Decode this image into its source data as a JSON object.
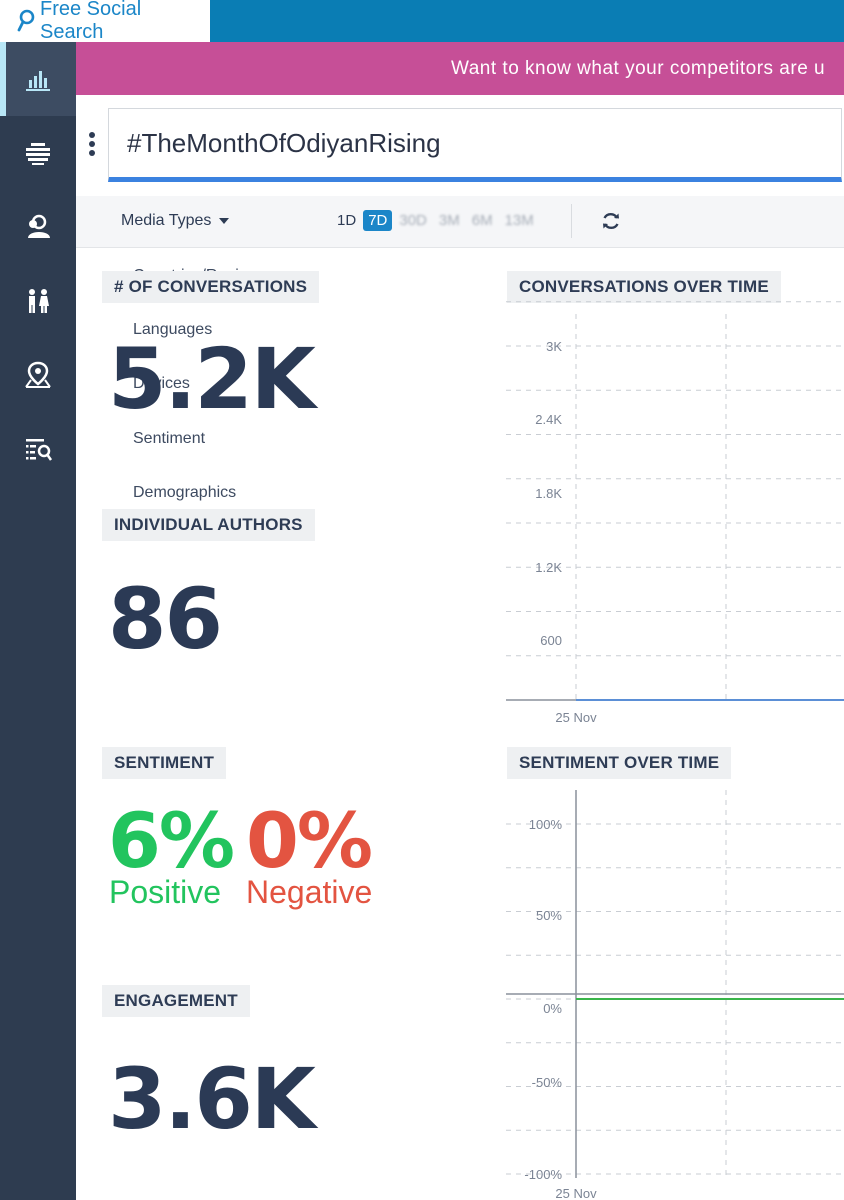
{
  "brand": {
    "name": "Free Social Search"
  },
  "banner": {
    "text": "Want to know what your competitors are u"
  },
  "search": {
    "value": "#TheMonthOfOdiyanRising"
  },
  "filters": {
    "media_types_label": "Media Types",
    "ranges": [
      "1D",
      "7D",
      "30D",
      "3M",
      "6M",
      "13M"
    ],
    "selected_range": "7D"
  },
  "menu": {
    "items": [
      "Countries/Regions",
      "Languages",
      "Devices",
      "Sentiment",
      "Demographics"
    ]
  },
  "stats": {
    "conversations_label": "# OF CONVERSATIONS",
    "conversations_value": "5.2K",
    "authors_label": "INDIVIDUAL AUTHORS",
    "authors_value": "86",
    "sentiment_label": "SENTIMENT",
    "positive_value": "6%",
    "positive_label": "Positive",
    "negative_value": "0%",
    "negative_label": "Negative",
    "engagement_label": "ENGAGEMENT",
    "engagement_value": "3.6K"
  },
  "colors": {
    "brand_blue": "#0a7db4",
    "banner_pink": "#c64f97",
    "sidebar": "#2e3c50",
    "positive": "#22c45e",
    "negative": "#e35441",
    "accent_blue": "#3b82e0"
  },
  "sidebar_icons": [
    "bar-chart-icon",
    "stack-icon",
    "users-icon",
    "gender-icon",
    "map-pin-icon",
    "list-search-icon"
  ],
  "chart_data": [
    {
      "type": "line",
      "title": "CONVERSATIONS OVER TIME",
      "y_ticks": [
        "3K",
        "2.4K",
        "1.8K",
        "1.2K",
        "600"
      ],
      "ylim": [
        0,
        3000
      ],
      "x_ticks": [
        "25 Nov"
      ],
      "series": [
        {
          "values": [
            0,
            0,
            0
          ]
        }
      ],
      "grid": true
    },
    {
      "type": "line",
      "title": "SENTIMENT OVER TIME",
      "y_ticks": [
        "100%",
        "50%",
        "0%",
        "-50%",
        "-100%"
      ],
      "ylim": [
        -100,
        100
      ],
      "x_ticks": [
        "25 Nov"
      ],
      "series": [
        {
          "values": [
            0,
            0,
            0
          ]
        }
      ],
      "grid": true
    }
  ]
}
